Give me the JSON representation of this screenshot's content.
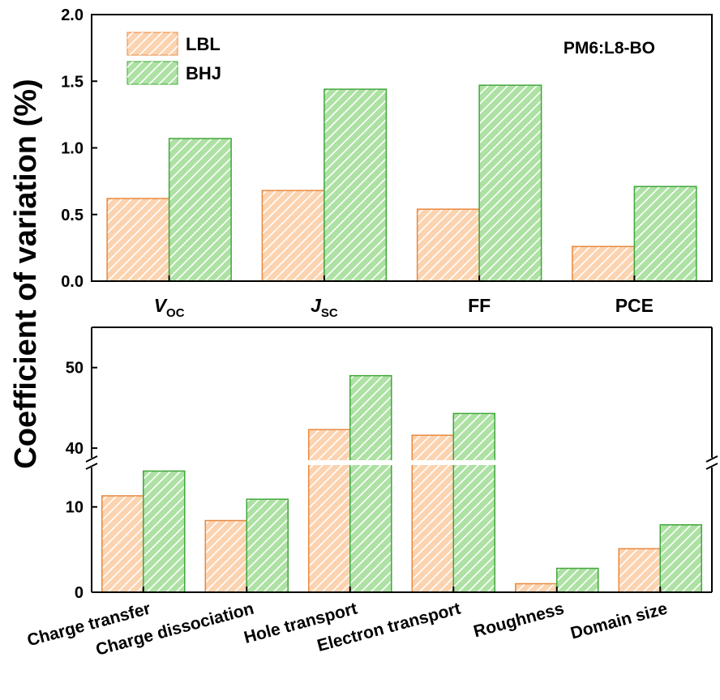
{
  "figure": {
    "ylabel": "Coefficient of variation (%)"
  },
  "colors": {
    "LBL_fill": "#fcd3b0",
    "LBL_edge": "#e8893f",
    "BHJ_fill": "#aee1a4",
    "BHJ_edge": "#3fa83a",
    "hatch": "#ffffff",
    "axis": "#000000"
  },
  "chart_data": [
    {
      "type": "bar",
      "annotation": "PM6:L8-BO",
      "categories": [
        {
          "main": "V",
          "sub": "OC",
          "italic": true
        },
        {
          "main": "J",
          "sub": "SC",
          "italic": true
        },
        {
          "main": "FF",
          "sub": "",
          "italic": false
        },
        {
          "main": "PCE",
          "sub": "",
          "italic": false
        }
      ],
      "series": [
        {
          "name": "LBL",
          "values": [
            0.62,
            0.68,
            0.54,
            0.26
          ]
        },
        {
          "name": "BHJ",
          "values": [
            1.07,
            1.44,
            1.47,
            0.71
          ]
        }
      ],
      "ylim": [
        0,
        2.0
      ],
      "yticks": [
        "0.0",
        "0.5",
        "1.0",
        "1.5",
        "2.0"
      ],
      "legend": "top-left",
      "grid": false
    },
    {
      "type": "bar",
      "categories": [
        "Charge transfer",
        "Charge dissociation",
        "Hole transport",
        "Electron transport",
        "Roughness",
        "Domain size"
      ],
      "series": [
        {
          "name": "LBL",
          "values": [
            11.3,
            8.4,
            42.3,
            41.6,
            1.0,
            5.1
          ]
        },
        {
          "name": "BHJ",
          "values": [
            14.2,
            10.9,
            49.0,
            44.3,
            2.8,
            7.9
          ]
        }
      ],
      "broken_axis": {
        "lower": [
          0,
          15
        ],
        "upper": [
          38,
          55
        ]
      },
      "yticks": [
        "0",
        "10",
        "40",
        "50"
      ],
      "grid": false
    }
  ]
}
